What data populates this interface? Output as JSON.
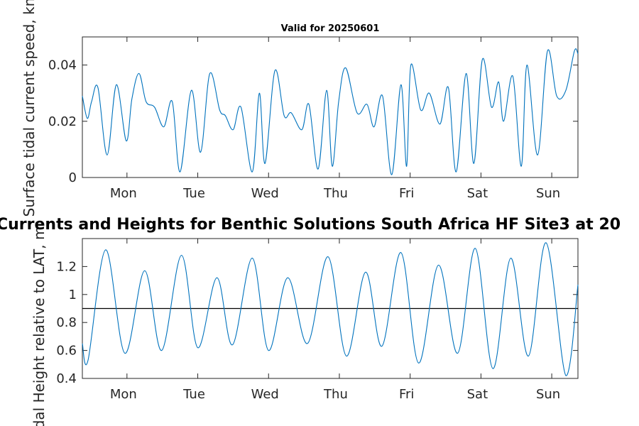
{
  "chart_data": [
    {
      "type": "line",
      "title": "Valid for 20250601",
      "ylabel": "Surface tidal current speed, kn",
      "xlabel": "",
      "xlim": [
        0,
        7
      ],
      "ylim": [
        0,
        0.05
      ],
      "yticks": [
        0,
        0.02,
        0.04
      ],
      "ytick_labels": [
        "0",
        "0.02",
        "0.04"
      ],
      "xticks": [
        0.63,
        1.63,
        2.63,
        3.63,
        4.63,
        5.63,
        6.63
      ],
      "xtick_labels": [
        "Mon",
        "Tue",
        "Wed",
        "Thu",
        "Fri",
        "Sat",
        "Sun"
      ],
      "grid": false,
      "series": [
        {
          "color": "#0072bd",
          "x": [
            0,
            0.07,
            0.13,
            0.22,
            0.35,
            0.48,
            0.62,
            0.7,
            0.8,
            0.9,
            1.02,
            1.15,
            1.27,
            1.38,
            1.54,
            1.67,
            1.8,
            1.94,
            2.02,
            2.13,
            2.24,
            2.4,
            2.5,
            2.58,
            2.72,
            2.85,
            2.95,
            3.1,
            3.2,
            3.33,
            3.45,
            3.53,
            3.62,
            3.72,
            3.88,
            4.02,
            4.12,
            4.24,
            4.37,
            4.5,
            4.58,
            4.64,
            4.78,
            4.9,
            5.05,
            5.17,
            5.28,
            5.42,
            5.53,
            5.65,
            5.78,
            5.88,
            5.95,
            6.08,
            6.2,
            6.28,
            6.43,
            6.57,
            6.7,
            6.83,
            6.95,
            7
          ],
          "y": [
            0.029,
            0.021,
            0.027,
            0.032,
            0.008,
            0.033,
            0.013,
            0.028,
            0.037,
            0.027,
            0.025,
            0.018,
            0.027,
            0.002,
            0.031,
            0.009,
            0.037,
            0.024,
            0.022,
            0.017,
            0.025,
            0.002,
            0.03,
            0.005,
            0.038,
            0.022,
            0.023,
            0.017,
            0.026,
            0.003,
            0.031,
            0.004,
            0.027,
            0.039,
            0.023,
            0.026,
            0.018,
            0.029,
            0.001,
            0.033,
            0.004,
            0.04,
            0.024,
            0.03,
            0.019,
            0.032,
            0.002,
            0.037,
            0.005,
            0.042,
            0.025,
            0.034,
            0.02,
            0.036,
            0.004,
            0.04,
            0.008,
            0.045,
            0.029,
            0.031,
            0.045,
            0.044
          ]
        }
      ]
    },
    {
      "type": "line",
      "title": "Currents and Heights for Benthic Solutions South Africa HF Site3 at 20",
      "ylabel": "Tidal Height relative to LAT, m",
      "xlabel": "",
      "xlim": [
        0,
        7
      ],
      "ylim": [
        0.4,
        1.4
      ],
      "yticks": [
        0.4,
        0.6,
        0.8,
        1.0,
        1.2
      ],
      "ytick_labels": [
        "0.4",
        "0.6",
        "0.8",
        "1",
        "1.2"
      ],
      "xticks": [
        0.63,
        1.63,
        2.63,
        3.63,
        4.63,
        5.63,
        6.63
      ],
      "xtick_labels": [
        "Mon",
        "Tue",
        "Wed",
        "Thu",
        "Fri",
        "Sat",
        "Sun"
      ],
      "reference_line": 0.9,
      "grid": false,
      "series": [
        {
          "color": "#0072bd",
          "x": [
            0,
            0.08,
            0.33,
            0.6,
            0.88,
            1.12,
            1.4,
            1.63,
            1.9,
            2.12,
            2.4,
            2.63,
            2.9,
            3.18,
            3.47,
            3.73,
            4.0,
            4.23,
            4.5,
            4.75,
            5.03,
            5.3,
            5.55,
            5.8,
            6.05,
            6.3,
            6.55,
            6.83,
            7
          ],
          "y": [
            0.65,
            0.53,
            1.32,
            0.58,
            1.17,
            0.6,
            1.28,
            0.62,
            1.12,
            0.64,
            1.26,
            0.6,
            1.12,
            0.65,
            1.27,
            0.56,
            1.16,
            0.63,
            1.3,
            0.51,
            1.21,
            0.58,
            1.33,
            0.47,
            1.26,
            0.56,
            1.37,
            0.42,
            1.07
          ]
        }
      ]
    }
  ]
}
